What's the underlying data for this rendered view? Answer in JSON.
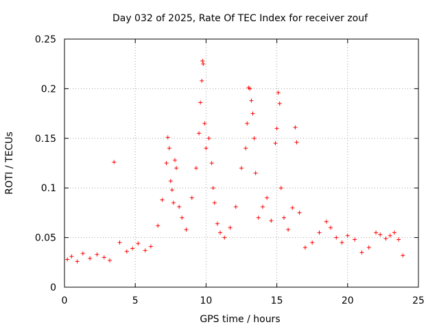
{
  "chart_data": {
    "type": "scatter",
    "title": "Day 032 of 2025, Rate Of TEC Index for receiver zouf",
    "xlabel": "GPS time / hours",
    "ylabel": "ROTI / TECUs",
    "xlim": [
      0,
      25
    ],
    "ylim": [
      0,
      0.25
    ],
    "xticks": [
      0,
      5,
      10,
      15,
      20,
      25
    ],
    "xtick_labels": [
      "0",
      "5",
      "10",
      "15",
      "20",
      "25"
    ],
    "yticks": [
      0,
      0.05,
      0.1,
      0.15,
      0.2,
      0.25
    ],
    "ytick_labels": [
      "0",
      "0.05",
      "0.1",
      "0.15",
      "0.2",
      "0.25"
    ],
    "grid": true,
    "marker": "plus",
    "color": "#ff0000",
    "series": [
      {
        "x": [
          0.2,
          0.5,
          0.9,
          1.3,
          1.8,
          2.3,
          2.8,
          3.2,
          3.5,
          3.9,
          4.4,
          4.8,
          5.2,
          5.7,
          6.1,
          6.6,
          6.9,
          7.2,
          7.3,
          7.4,
          7.5,
          7.6,
          7.7,
          7.8,
          7.9,
          8.1,
          8.3,
          8.6,
          9.0,
          9.3,
          9.5,
          9.6,
          9.7,
          9.75,
          9.8,
          9.9,
          10.0,
          10.2,
          10.4,
          10.5,
          10.6,
          10.8,
          11.0,
          11.3,
          11.7,
          12.1,
          12.5,
          12.8,
          12.9,
          13.0,
          13.1,
          13.2,
          13.3,
          13.4,
          13.5,
          13.7,
          14.0,
          14.3,
          14.6,
          14.9,
          15.0,
          15.1,
          15.2,
          15.3,
          15.5,
          15.8,
          16.1,
          16.3,
          16.4,
          16.6,
          17.0,
          17.5,
          18.0,
          18.5,
          18.8,
          19.2,
          19.6,
          20.0,
          20.5,
          21.0,
          21.5,
          22.0,
          22.3,
          22.7,
          23.0,
          23.3,
          23.6,
          23.9
        ],
        "y": [
          0.028,
          0.031,
          0.026,
          0.034,
          0.029,
          0.033,
          0.03,
          0.027,
          0.126,
          0.045,
          0.036,
          0.039,
          0.044,
          0.037,
          0.041,
          0.062,
          0.088,
          0.125,
          0.151,
          0.14,
          0.107,
          0.098,
          0.085,
          0.128,
          0.12,
          0.081,
          0.07,
          0.058,
          0.09,
          0.12,
          0.155,
          0.186,
          0.208,
          0.228,
          0.225,
          0.165,
          0.14,
          0.15,
          0.125,
          0.1,
          0.085,
          0.064,
          0.055,
          0.05,
          0.06,
          0.081,
          0.12,
          0.14,
          0.165,
          0.201,
          0.2,
          0.188,
          0.175,
          0.15,
          0.115,
          0.07,
          0.081,
          0.09,
          0.067,
          0.145,
          0.16,
          0.196,
          0.185,
          0.1,
          0.07,
          0.058,
          0.08,
          0.161,
          0.146,
          0.075,
          0.04,
          0.045,
          0.055,
          0.066,
          0.06,
          0.05,
          0.045,
          0.052,
          0.048,
          0.035,
          0.04,
          0.055,
          0.053,
          0.049,
          0.052,
          0.055,
          0.048,
          0.032
        ]
      }
    ]
  }
}
